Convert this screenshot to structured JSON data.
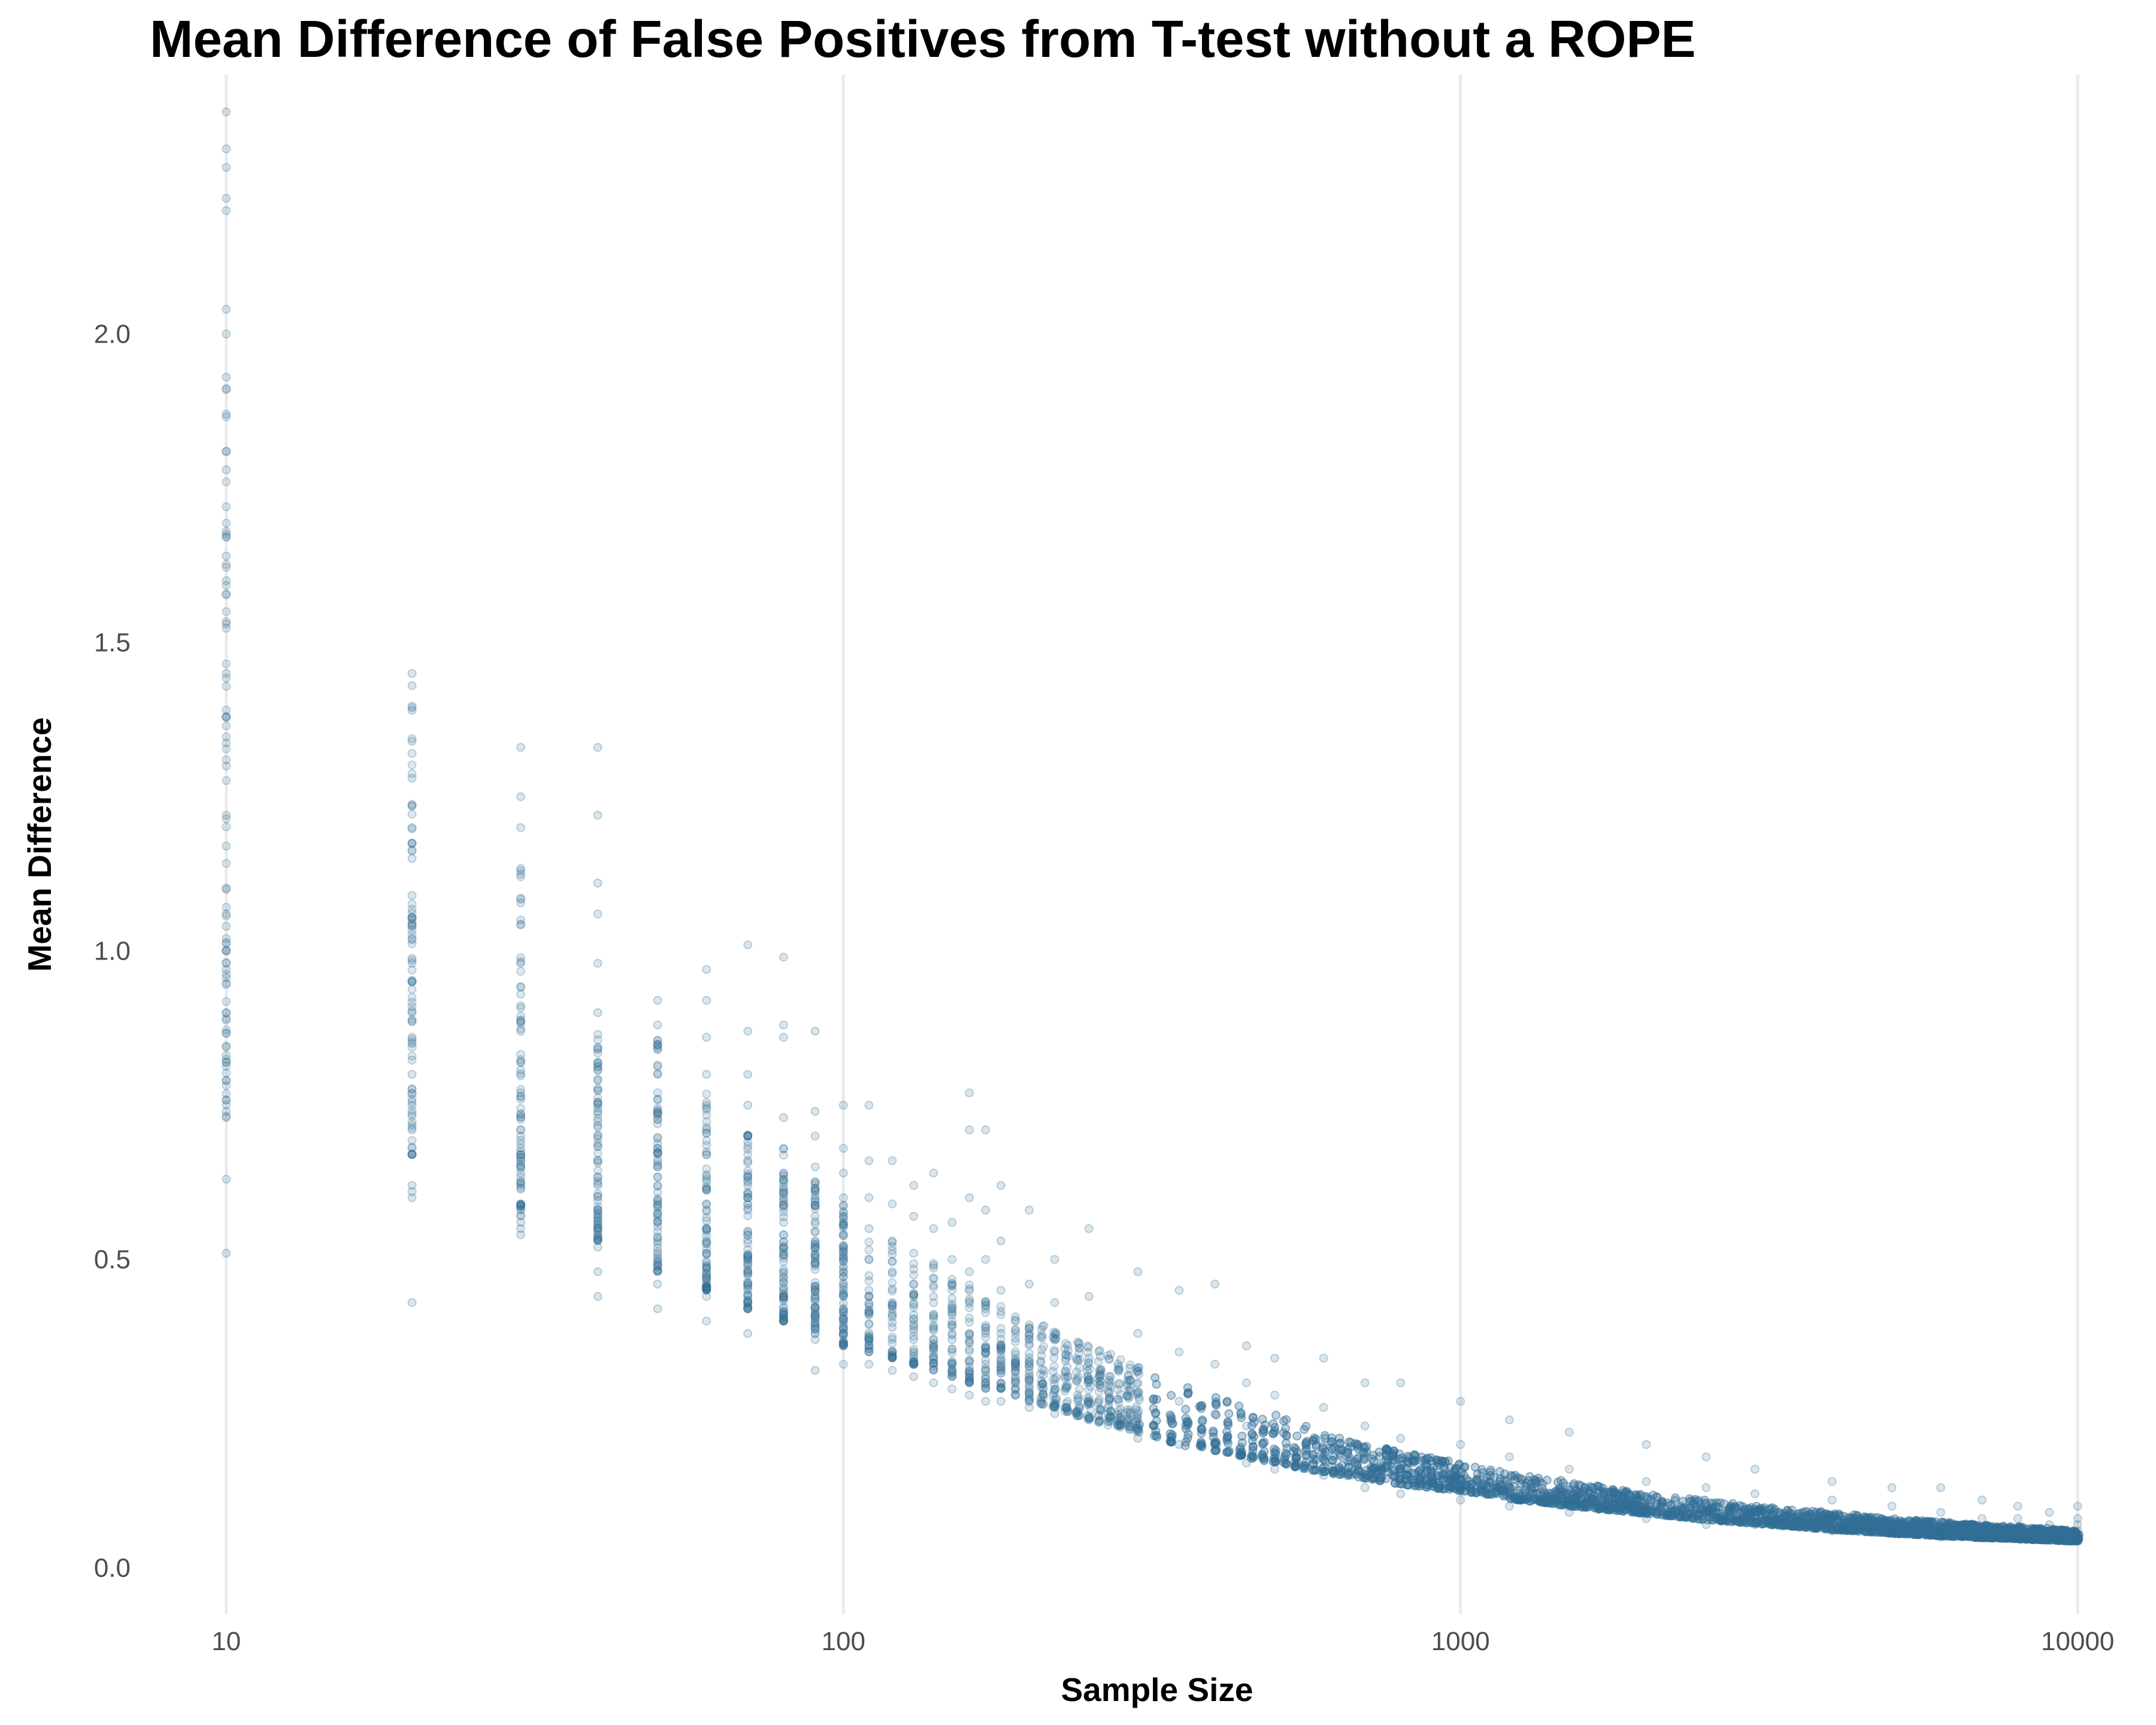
{
  "chart_data": {
    "type": "scatter",
    "title": "Mean Difference of False Positives from T-test without a ROPE",
    "xlabel": "Sample Size",
    "ylabel": "Mean Difference",
    "x_scale": "log10",
    "xlim": [
      7.6,
      13100
    ],
    "ylim": [
      -0.075,
      2.42
    ],
    "x_ticks": [
      10,
      100,
      1000,
      10000
    ],
    "x_tick_labels": [
      "10",
      "100",
      "1000",
      "10000"
    ],
    "y_ticks": [
      0.0,
      0.5,
      1.0,
      1.5,
      2.0
    ],
    "y_tick_labels": [
      "0.0",
      "0.5",
      "1.0",
      "1.5",
      "2.0"
    ],
    "grid": "vertical major lines only",
    "legend": "none",
    "point_color": "#336e96",
    "point_alpha": 0.12,
    "series": [
      {
        "x": [
          10,
          10,
          10,
          10,
          10,
          10,
          10,
          10,
          10,
          10,
          10,
          10,
          10,
          10,
          10,
          10,
          10,
          10,
          10,
          10,
          10,
          10,
          10,
          10,
          10,
          10,
          10,
          10,
          10,
          10,
          20,
          20,
          20,
          20,
          20,
          20,
          20,
          20,
          20,
          20,
          20,
          20,
          20,
          20,
          20,
          20,
          20,
          20,
          20,
          20,
          20,
          30,
          30,
          30,
          30,
          30,
          30,
          30,
          30,
          30,
          30,
          30,
          30,
          30,
          30,
          30,
          30,
          30,
          30,
          40,
          40,
          40,
          40,
          40,
          40,
          40,
          40,
          40,
          40,
          40,
          40,
          40,
          40,
          40,
          40,
          40,
          50,
          50,
          50,
          50,
          50,
          50,
          50,
          50,
          50,
          50,
          50,
          50,
          50,
          50,
          50,
          60,
          60,
          60,
          60,
          60,
          60,
          60,
          60,
          60,
          60,
          60,
          60,
          60,
          60,
          70,
          70,
          70,
          70,
          70,
          70,
          70,
          70,
          70,
          70,
          70,
          70,
          70,
          80,
          80,
          80,
          80,
          80,
          80,
          80,
          80,
          80,
          80,
          80,
          80,
          90,
          90,
          90,
          90,
          90,
          90,
          90,
          90,
          90,
          90,
          90,
          90,
          100,
          100,
          100,
          100,
          100,
          100,
          100,
          100,
          100,
          100,
          100,
          100,
          110,
          110,
          110,
          110,
          110,
          110,
          110,
          110,
          110,
          120,
          120,
          120,
          120,
          120,
          120,
          120,
          120,
          130,
          130,
          130,
          130,
          130,
          130,
          130,
          130,
          140,
          140,
          140,
          140,
          140,
          140,
          140,
          150,
          150,
          150,
          150,
          150,
          150,
          150,
          160,
          160,
          160,
          160,
          160,
          160,
          160,
          170,
          170,
          170,
          170,
          170,
          170,
          170,
          180,
          180,
          180,
          180,
          180,
          180,
          200,
          200,
          200,
          200,
          200,
          220,
          220,
          220,
          220,
          220,
          250,
          250,
          250,
          250,
          250,
          300,
          300,
          300,
          300,
          300,
          350,
          350,
          350,
          350,
          400,
          400,
          400,
          400,
          450,
          450,
          450,
          450,
          500,
          500,
          500,
          500,
          600,
          600,
          600,
          600,
          700,
          700,
          700,
          700,
          800,
          800,
          800,
          800,
          1000,
          1000,
          1000,
          1000,
          1200,
          1200,
          1200,
          1200,
          1500,
          1500,
          1500,
          1500,
          2000,
          2000,
          2000,
          2000,
          2500,
          2500,
          2500,
          2500,
          3000,
          3000,
          3000,
          3000,
          4000,
          4000,
          4000,
          4000,
          5000,
          5000,
          5000,
          5000,
          6000,
          6000,
          6000,
          6000,
          7000,
          7000,
          7000,
          8000,
          8000,
          8000,
          9000,
          9000,
          9000,
          10000,
          10000,
          10000,
          10000,
          10000
        ],
        "y": [
          2.36,
          2.3,
          2.27,
          2.22,
          2.2,
          2.04,
          2.0,
          1.93,
          1.91,
          1.87,
          1.81,
          1.78,
          1.72,
          1.68,
          1.64,
          1.6,
          1.53,
          1.45,
          1.38,
          1.3,
          1.22,
          1.17,
          1.1,
          1.04,
          0.97,
          0.9,
          0.82,
          0.74,
          0.63,
          0.51,
          1.45,
          1.43,
          1.39,
          1.34,
          1.28,
          1.2,
          1.15,
          1.09,
          1.04,
          0.98,
          0.95,
          0.9,
          0.85,
          0.8,
          0.75,
          0.71,
          0.67,
          0.62,
          0.61,
          0.6,
          0.43,
          1.33,
          1.25,
          1.2,
          1.13,
          1.05,
          0.98,
          0.93,
          0.87,
          0.82,
          0.77,
          0.73,
          0.7,
          0.66,
          0.62,
          0.59,
          0.56,
          0.55,
          0.54,
          1.33,
          1.22,
          1.11,
          1.06,
          0.98,
          0.9,
          0.84,
          0.79,
          0.74,
          0.7,
          0.66,
          0.62,
          0.58,
          0.55,
          0.52,
          0.48,
          0.44,
          0.92,
          0.88,
          0.84,
          0.8,
          0.76,
          0.72,
          0.68,
          0.65,
          0.62,
          0.59,
          0.56,
          0.53,
          0.5,
          0.46,
          0.42,
          0.97,
          0.92,
          0.86,
          0.8,
          0.75,
          0.71,
          0.67,
          0.63,
          0.59,
          0.55,
          0.51,
          0.47,
          0.44,
          0.4,
          1.01,
          0.87,
          0.8,
          0.75,
          0.7,
          0.66,
          0.62,
          0.58,
          0.54,
          0.5,
          0.46,
          0.42,
          0.38,
          0.99,
          0.88,
          0.86,
          0.73,
          0.68,
          0.64,
          0.6,
          0.56,
          0.52,
          0.48,
          0.44,
          0.4,
          0.87,
          0.74,
          0.7,
          0.65,
          0.61,
          0.57,
          0.53,
          0.49,
          0.45,
          0.41,
          0.37,
          0.32,
          0.75,
          0.68,
          0.64,
          0.6,
          0.56,
          0.52,
          0.48,
          0.45,
          0.42,
          0.39,
          0.36,
          0.33,
          0.75,
          0.66,
          0.6,
          0.55,
          0.5,
          0.45,
          0.41,
          0.37,
          0.33,
          0.66,
          0.59,
          0.53,
          0.48,
          0.43,
          0.39,
          0.35,
          0.32,
          0.62,
          0.57,
          0.51,
          0.46,
          0.41,
          0.37,
          0.33,
          0.31,
          0.64,
          0.55,
          0.49,
          0.44,
          0.39,
          0.35,
          0.3,
          0.56,
          0.5,
          0.45,
          0.41,
          0.37,
          0.33,
          0.29,
          0.77,
          0.71,
          0.6,
          0.48,
          0.38,
          0.32,
          0.28,
          0.71,
          0.58,
          0.5,
          0.42,
          0.35,
          0.3,
          0.27,
          0.62,
          0.53,
          0.45,
          0.38,
          0.32,
          0.27,
          0.58,
          0.46,
          0.38,
          0.31,
          0.26,
          0.5,
          0.43,
          0.35,
          0.29,
          0.25,
          0.55,
          0.44,
          0.34,
          0.27,
          0.24,
          0.48,
          0.38,
          0.3,
          0.25,
          0.21,
          0.45,
          0.35,
          0.27,
          0.2,
          0.46,
          0.33,
          0.25,
          0.19,
          0.36,
          0.3,
          0.23,
          0.17,
          0.34,
          0.28,
          0.22,
          0.16,
          0.34,
          0.26,
          0.2,
          0.15,
          0.3,
          0.23,
          0.18,
          0.13,
          0.3,
          0.21,
          0.16,
          0.12,
          0.27,
          0.2,
          0.15,
          0.11,
          0.24,
          0.18,
          0.13,
          0.1,
          0.22,
          0.16,
          0.12,
          0.09,
          0.2,
          0.14,
          0.1,
          0.08,
          0.18,
          0.13,
          0.09,
          0.07,
          0.16,
          0.12,
          0.09,
          0.07,
          0.14,
          0.11,
          0.08,
          0.06,
          0.13,
          0.1,
          0.07,
          0.06,
          0.13,
          0.09,
          0.07,
          0.05,
          0.11,
          0.08,
          0.06,
          0.1,
          0.08,
          0.05,
          0.09,
          0.07,
          0.05,
          0.1,
          0.08,
          0.07,
          0.06,
          0.05
        ]
      }
    ],
    "density_note": "Dense band of overlapping points following the falling trend; a stack of points at every sample size from 10 to 10000",
    "band": {
      "x": [
        10,
        20,
        30,
        40,
        50,
        60,
        70,
        80,
        90,
        100,
        110,
        120,
        130,
        140,
        150,
        160,
        170,
        180,
        200,
        220,
        250,
        300,
        350,
        400,
        450,
        500,
        600,
        700,
        800,
        1000,
        1200,
        1500,
        2000,
        2500,
        3000,
        4000,
        5000,
        6000,
        7000,
        8000,
        9000,
        10000
      ],
      "lower": [
        0.73,
        0.67,
        0.57,
        0.53,
        0.48,
        0.45,
        0.42,
        0.4,
        0.38,
        0.36,
        0.35,
        0.34,
        0.33,
        0.32,
        0.31,
        0.3,
        0.29,
        0.29,
        0.27,
        0.26,
        0.24,
        0.22,
        0.2,
        0.19,
        0.18,
        0.17,
        0.155,
        0.145,
        0.135,
        0.125,
        0.112,
        0.1,
        0.088,
        0.078,
        0.072,
        0.062,
        0.056,
        0.052,
        0.049,
        0.047,
        0.045,
        0.043
      ],
      "upper": [
        1.92,
        1.4,
        1.15,
        0.87,
        0.86,
        0.79,
        0.72,
        0.68,
        0.63,
        0.6,
        0.57,
        0.55,
        0.52,
        0.5,
        0.48,
        0.46,
        0.44,
        0.43,
        0.41,
        0.39,
        0.36,
        0.33,
        0.3,
        0.28,
        0.26,
        0.25,
        0.22,
        0.2,
        0.19,
        0.17,
        0.155,
        0.14,
        0.12,
        0.11,
        0.1,
        0.09,
        0.08,
        0.075,
        0.07,
        0.067,
        0.064,
        0.06
      ]
    }
  }
}
